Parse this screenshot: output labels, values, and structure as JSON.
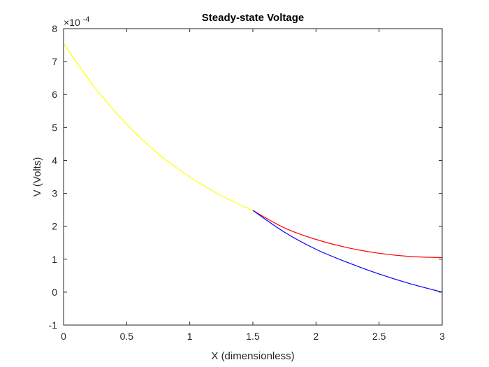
{
  "chart_data": {
    "type": "line",
    "title": "Steady-state Voltage",
    "xlabel": "X (dimensionless)",
    "ylabel": "V (Volts)",
    "exponent_label": "×10",
    "exponent_power": "-4",
    "xlim": [
      0,
      3
    ],
    "ylim": [
      -1,
      8
    ],
    "xticks": [
      "0",
      "0.5",
      "1",
      "1.5",
      "2",
      "2.5",
      "3"
    ],
    "yticks": [
      "-1",
      "0",
      "1",
      "2",
      "3",
      "4",
      "5",
      "6",
      "7",
      "8"
    ],
    "grid": false,
    "series": [
      {
        "color": "#ffff00",
        "x": [
          0,
          0.25,
          0.5,
          0.75,
          1.0,
          1.25,
          1.5
        ],
        "y": [
          7.55,
          6.2,
          5.1,
          4.2,
          3.5,
          2.93,
          2.48
        ]
      },
      {
        "color": "#ff0000",
        "x": [
          1.5,
          1.75,
          2.0,
          2.25,
          2.5,
          2.75,
          3.0
        ],
        "y": [
          2.48,
          1.95,
          1.6,
          1.35,
          1.18,
          1.08,
          1.05
        ]
      },
      {
        "color": "#0000ff",
        "x": [
          1.5,
          1.75,
          2.0,
          2.25,
          2.5,
          2.75,
          3.0
        ],
        "y": [
          2.48,
          1.82,
          1.3,
          0.9,
          0.55,
          0.25,
          0.0
        ]
      }
    ]
  }
}
